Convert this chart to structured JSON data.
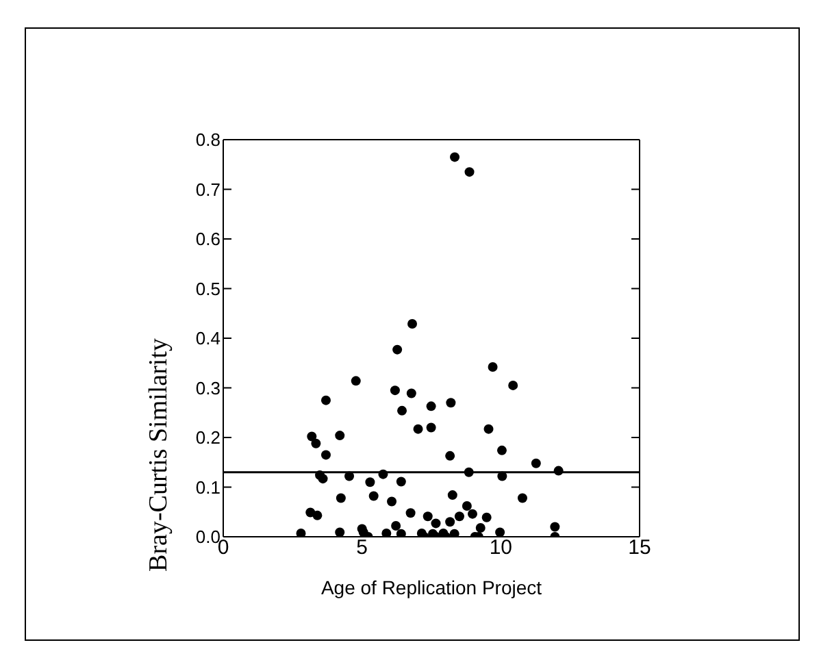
{
  "chart_data": {
    "type": "scatter",
    "xlabel": "Age of Replication Project",
    "ylabel": "Bray-Curtis Similarity",
    "xlim": [
      0,
      15
    ],
    "xticks": [
      0,
      5,
      10,
      15
    ],
    "ylim": [
      0,
      0.8
    ],
    "yticks": [
      {
        "value": 0,
        "label": "0.0"
      },
      0.1,
      0.2,
      0.3,
      0.4,
      0.5,
      0.6,
      0.7,
      0.8
    ],
    "grid": false,
    "marker": "circle",
    "legend": false,
    "ref_lines": [
      {
        "axis": "y",
        "value": 0.13,
        "color": "#000000"
      }
    ],
    "series": [
      {
        "color": "#000000",
        "x": [
          8.34,
          8.87,
          6.81,
          6.27,
          4.78,
          9.71,
          10.44,
          6.19,
          6.78,
          3.7,
          7.49,
          8.2,
          6.44,
          7.02,
          7.49,
          9.56,
          3.19,
          4.2,
          3.34,
          3.7,
          10.04,
          8.17,
          11.27,
          12.08,
          8.85,
          5.76,
          3.48,
          3.59,
          4.54,
          10.05,
          5.29,
          6.41,
          5.42,
          4.24,
          8.26,
          10.78,
          6.07,
          8.78,
          3.14,
          3.39,
          6.75,
          7.37,
          8.51,
          8.98,
          7.66,
          8.17,
          9.49,
          9.27,
          11.95,
          2.8,
          4.2,
          5.0,
          5.05,
          5.22,
          5.88,
          6.22,
          6.41,
          7.15,
          7.24,
          7.55,
          7.66,
          7.93,
          8.02,
          8.33,
          9.07,
          9.2,
          9.97,
          11.95
        ],
        "values": [
          0.765,
          0.735,
          0.429,
          0.377,
          0.314,
          0.342,
          0.305,
          0.295,
          0.289,
          0.275,
          0.263,
          0.27,
          0.254,
          0.217,
          0.22,
          0.217,
          0.202,
          0.204,
          0.188,
          0.165,
          0.174,
          0.163,
          0.148,
          0.133,
          0.13,
          0.126,
          0.124,
          0.117,
          0.122,
          0.122,
          0.11,
          0.111,
          0.082,
          0.078,
          0.084,
          0.078,
          0.071,
          0.062,
          0.049,
          0.043,
          0.048,
          0.041,
          0.041,
          0.046,
          0.027,
          0.03,
          0.039,
          0.018,
          0.02,
          0.007,
          0.009,
          0.016,
          0.009,
          0,
          0.007,
          0.022,
          0.006,
          0.007,
          0,
          0.006,
          0,
          0.007,
          0,
          0.006,
          0,
          0,
          0.009,
          0
        ]
      }
    ]
  }
}
